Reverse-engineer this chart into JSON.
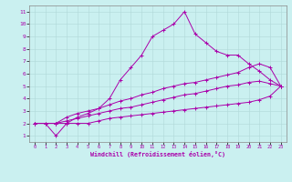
{
  "bg_color": "#caf0f0",
  "line_color": "#aa00aa",
  "xlim": [
    -0.5,
    23.5
  ],
  "ylim": [
    0.5,
    11.5
  ],
  "xticks": [
    0,
    1,
    2,
    3,
    4,
    5,
    6,
    7,
    8,
    9,
    10,
    11,
    12,
    13,
    14,
    15,
    16,
    17,
    18,
    19,
    20,
    21,
    22,
    23
  ],
  "yticks": [
    1,
    2,
    3,
    4,
    5,
    6,
    7,
    8,
    9,
    10,
    11
  ],
  "xlabel": "Windchill (Refroidissement éolien,°C)",
  "lines": [
    {
      "x": [
        0,
        1,
        2,
        3,
        4,
        5,
        6,
        7,
        8,
        9,
        10,
        11,
        12,
        13,
        14,
        15,
        16,
        17,
        18,
        19,
        20,
        21,
        22,
        23
      ],
      "y": [
        2,
        2,
        2,
        2,
        2.5,
        2.8,
        3.2,
        4.0,
        5.5,
        6.5,
        7.5,
        9.0,
        9.5,
        10.0,
        11.0,
        9.2,
        8.5,
        7.8,
        7.5,
        7.5,
        6.8,
        6.2,
        5.5,
        5.0
      ]
    },
    {
      "x": [
        0,
        2,
        3,
        4,
        5,
        6,
        7,
        8,
        9,
        10,
        11,
        12,
        13,
        14,
        15,
        16,
        17,
        18,
        19,
        20,
        21,
        22,
        23
      ],
      "y": [
        2,
        2,
        2.5,
        2.8,
        3.0,
        3.2,
        3.5,
        3.8,
        4.0,
        4.3,
        4.5,
        4.8,
        5.0,
        5.2,
        5.3,
        5.5,
        5.7,
        5.9,
        6.1,
        6.5,
        6.8,
        6.5,
        5.0
      ]
    },
    {
      "x": [
        0,
        2,
        3,
        4,
        5,
        6,
        7,
        8,
        9,
        10,
        11,
        12,
        13,
        14,
        15,
        16,
        17,
        18,
        19,
        20,
        21,
        22,
        23
      ],
      "y": [
        2,
        2,
        2.2,
        2.4,
        2.6,
        2.8,
        3.0,
        3.2,
        3.3,
        3.5,
        3.7,
        3.9,
        4.1,
        4.3,
        4.4,
        4.6,
        4.8,
        5.0,
        5.1,
        5.3,
        5.4,
        5.2,
        5.0
      ]
    },
    {
      "x": [
        0,
        1,
        2,
        3,
        4,
        5,
        6,
        7,
        8,
        9,
        10,
        11,
        12,
        13,
        14,
        15,
        16,
        17,
        18,
        19,
        20,
        21,
        22,
        23
      ],
      "y": [
        2,
        2,
        1,
        2,
        2,
        2,
        2.2,
        2.4,
        2.5,
        2.6,
        2.7,
        2.8,
        2.9,
        3.0,
        3.1,
        3.2,
        3.3,
        3.4,
        3.5,
        3.6,
        3.7,
        3.9,
        4.2,
        5.0
      ]
    }
  ]
}
